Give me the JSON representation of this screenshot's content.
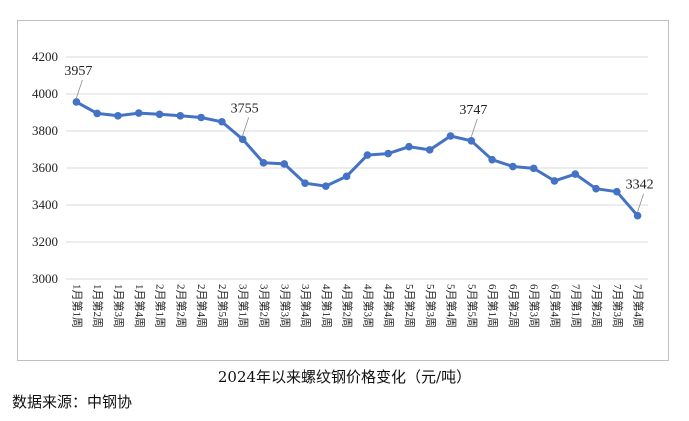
{
  "chart_data": {
    "type": "line",
    "title": "2024年以来螺纹钢价格变化（元/吨）",
    "source": "数据来源：中钢协",
    "xlabel": "",
    "ylabel": "",
    "ylim": [
      3000,
      4200
    ],
    "yticks": [
      3000,
      3200,
      3400,
      3600,
      3800,
      4000,
      4200
    ],
    "grid": true,
    "legend": "none",
    "categories": [
      "1月第1周",
      "1月第2周",
      "1月第3周",
      "1月第4周",
      "2月第1周",
      "2月第2周",
      "2月第4周",
      "2月第5周",
      "3月第1周",
      "3月第2周",
      "3月第3周",
      "3月第4周",
      "4月第1周",
      "4月第2周",
      "4月第3周",
      "4月第4周",
      "5月第2周",
      "5月第3周",
      "5月第4周",
      "5月第5周",
      "6月第1周",
      "6月第2周",
      "6月第3周",
      "6月第4周",
      "7月第1周",
      "7月第2周",
      "7月第3周",
      "7月第4周"
    ],
    "series": [
      {
        "values": [
          3957,
          3895,
          3882,
          3897,
          3890,
          3882,
          3873,
          3850,
          3755,
          3628,
          3622,
          3518,
          3502,
          3555,
          3670,
          3678,
          3715,
          3698,
          3773,
          3747,
          3645,
          3608,
          3598,
          3530,
          3567,
          3488,
          3472,
          3342
        ],
        "color": "#4472c4"
      }
    ],
    "labeled_points": [
      {
        "index": 0,
        "text": "3957"
      },
      {
        "index": 8,
        "text": "3755"
      },
      {
        "index": 19,
        "text": "3747"
      },
      {
        "index": 27,
        "text": "3342"
      }
    ]
  }
}
